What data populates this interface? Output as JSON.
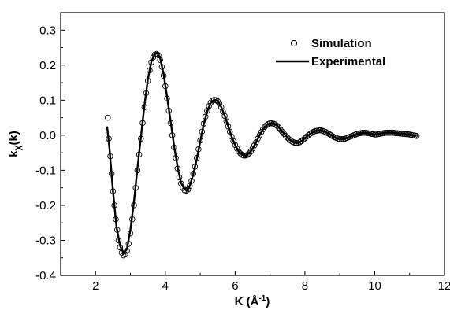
{
  "chart_data": {
    "type": "line",
    "title": "",
    "xlabel": "K (Å",
    "xlabel_sup": "-1",
    "xlabel_end": ")",
    "ylabel": "k",
    "ylabel_sub": "χ",
    "ylabel_end": "(k)",
    "xlim": [
      1,
      12
    ],
    "ylim": [
      -0.4,
      0.35
    ],
    "xticks": [
      2,
      4,
      6,
      8,
      10,
      12
    ],
    "xtick_labels": [
      "2",
      "4",
      "6",
      "8",
      "10",
      "12"
    ],
    "yticks": [
      -0.4,
      -0.3,
      -0.2,
      -0.1,
      0.0,
      0.1,
      0.2,
      0.3
    ],
    "ytick_labels": [
      "-0.4",
      "-0.3",
      "-0.2",
      "-0.1",
      "0.0",
      "0.1",
      "0.2",
      "0.3"
    ],
    "grid": false,
    "legend_position": "top-right",
    "series": [
      {
        "name": "Simulation",
        "style": "open-circle-markers",
        "color": "#000000",
        "points": [
          [
            2.35,
            0.05
          ],
          [
            2.38,
            -0.01
          ],
          [
            2.42,
            -0.06
          ],
          [
            2.46,
            -0.11
          ],
          [
            2.5,
            -0.16
          ],
          [
            2.54,
            -0.2
          ],
          [
            2.58,
            -0.24
          ],
          [
            2.62,
            -0.27
          ],
          [
            2.66,
            -0.3
          ],
          [
            2.7,
            -0.32
          ],
          [
            2.75,
            -0.335
          ],
          [
            2.8,
            -0.343
          ],
          [
            2.85,
            -0.34
          ],
          [
            2.9,
            -0.33
          ],
          [
            2.95,
            -0.31
          ],
          [
            3.0,
            -0.28
          ],
          [
            3.05,
            -0.24
          ],
          [
            3.1,
            -0.2
          ],
          [
            3.15,
            -0.15
          ],
          [
            3.2,
            -0.1
          ],
          [
            3.25,
            -0.055
          ],
          [
            3.3,
            -0.01
          ],
          [
            3.35,
            0.035
          ],
          [
            3.4,
            0.08
          ],
          [
            3.45,
            0.12
          ],
          [
            3.5,
            0.155
          ],
          [
            3.55,
            0.185
          ],
          [
            3.6,
            0.208
          ],
          [
            3.65,
            0.222
          ],
          [
            3.7,
            0.23
          ],
          [
            3.75,
            0.232
          ],
          [
            3.8,
            0.228
          ],
          [
            3.85,
            0.215
          ],
          [
            3.9,
            0.195
          ],
          [
            3.95,
            0.17
          ],
          [
            4.0,
            0.14
          ],
          [
            4.05,
            0.105
          ],
          [
            4.1,
            0.07
          ],
          [
            4.15,
            0.035
          ],
          [
            4.2,
            0.0
          ],
          [
            4.25,
            -0.035
          ],
          [
            4.3,
            -0.065
          ],
          [
            4.35,
            -0.095
          ],
          [
            4.4,
            -0.12
          ],
          [
            4.45,
            -0.138
          ],
          [
            4.5,
            -0.15
          ],
          [
            4.55,
            -0.157
          ],
          [
            4.6,
            -0.158
          ],
          [
            4.65,
            -0.155
          ],
          [
            4.7,
            -0.145
          ],
          [
            4.75,
            -0.13
          ],
          [
            4.8,
            -0.11
          ],
          [
            4.85,
            -0.09
          ],
          [
            4.9,
            -0.065
          ],
          [
            4.95,
            -0.04
          ],
          [
            5.0,
            -0.015
          ],
          [
            5.05,
            0.01
          ],
          [
            5.1,
            0.033
          ],
          [
            5.15,
            0.053
          ],
          [
            5.2,
            0.07
          ],
          [
            5.25,
            0.083
          ],
          [
            5.3,
            0.093
          ],
          [
            5.35,
            0.099
          ],
          [
            5.4,
            0.101
          ],
          [
            5.45,
            0.1
          ],
          [
            5.5,
            0.097
          ],
          [
            5.55,
            0.09
          ],
          [
            5.6,
            0.08
          ],
          [
            5.65,
            0.068
          ],
          [
            5.7,
            0.055
          ],
          [
            5.75,
            0.04
          ],
          [
            5.8,
            0.025
          ],
          [
            5.85,
            0.01
          ],
          [
            5.9,
            -0.004
          ],
          [
            5.95,
            -0.017
          ],
          [
            6.0,
            -0.028
          ],
          [
            6.05,
            -0.038
          ],
          [
            6.1,
            -0.046
          ],
          [
            6.15,
            -0.052
          ],
          [
            6.2,
            -0.056
          ],
          [
            6.25,
            -0.058
          ],
          [
            6.3,
            -0.058
          ],
          [
            6.35,
            -0.056
          ],
          [
            6.4,
            -0.052
          ],
          [
            6.45,
            -0.046
          ],
          [
            6.5,
            -0.038
          ],
          [
            6.55,
            -0.029
          ],
          [
            6.6,
            -0.02
          ],
          [
            6.65,
            -0.01
          ],
          [
            6.7,
            0.0
          ],
          [
            6.75,
            0.009
          ],
          [
            6.8,
            0.017
          ],
          [
            6.85,
            0.024
          ],
          [
            6.9,
            0.029
          ],
          [
            6.95,
            0.032
          ],
          [
            7.0,
            0.034
          ],
          [
            7.05,
            0.034
          ],
          [
            7.1,
            0.033
          ],
          [
            7.15,
            0.031
          ],
          [
            7.2,
            0.027
          ],
          [
            7.25,
            0.022
          ],
          [
            7.3,
            0.016
          ],
          [
            7.35,
            0.01
          ],
          [
            7.4,
            0.004
          ],
          [
            7.45,
            -0.002
          ],
          [
            7.5,
            -0.007
          ],
          [
            7.55,
            -0.012
          ],
          [
            7.6,
            -0.016
          ],
          [
            7.65,
            -0.019
          ],
          [
            7.7,
            -0.021
          ],
          [
            7.75,
            -0.022
          ],
          [
            7.8,
            -0.022
          ],
          [
            7.85,
            -0.02
          ],
          [
            7.9,
            -0.017
          ],
          [
            7.95,
            -0.013
          ],
          [
            8.0,
            -0.009
          ],
          [
            8.05,
            -0.004
          ],
          [
            8.1,
            0.0
          ],
          [
            8.15,
            0.004
          ],
          [
            8.2,
            0.007
          ],
          [
            8.25,
            0.01
          ],
          [
            8.3,
            0.012
          ],
          [
            8.35,
            0.013
          ],
          [
            8.4,
            0.014
          ],
          [
            8.45,
            0.014
          ],
          [
            8.5,
            0.013
          ],
          [
            8.55,
            0.011
          ],
          [
            8.6,
            0.009
          ],
          [
            8.65,
            0.006
          ],
          [
            8.7,
            0.003
          ],
          [
            8.75,
            0.0
          ],
          [
            8.8,
            -0.003
          ],
          [
            8.85,
            -0.006
          ],
          [
            8.9,
            -0.008
          ],
          [
            8.95,
            -0.01
          ],
          [
            9.0,
            -0.011
          ],
          [
            9.05,
            -0.011
          ],
          [
            9.1,
            -0.011
          ],
          [
            9.15,
            -0.01
          ],
          [
            9.2,
            -0.008
          ],
          [
            9.25,
            -0.006
          ],
          [
            9.3,
            -0.004
          ],
          [
            9.35,
            -0.002
          ],
          [
            9.4,
            0.0
          ],
          [
            9.45,
            0.002
          ],
          [
            9.5,
            0.004
          ],
          [
            9.55,
            0.005
          ],
          [
            9.6,
            0.006
          ],
          [
            9.65,
            0.007
          ],
          [
            9.7,
            0.007
          ],
          [
            9.75,
            0.007
          ],
          [
            9.8,
            0.006
          ],
          [
            9.85,
            0.005
          ],
          [
            9.9,
            0.004
          ],
          [
            9.95,
            0.003
          ],
          [
            10.0,
            0.002
          ],
          [
            10.05,
            0.002
          ],
          [
            10.1,
            0.003
          ],
          [
            10.15,
            0.004
          ],
          [
            10.2,
            0.005
          ],
          [
            10.25,
            0.006
          ],
          [
            10.3,
            0.007
          ],
          [
            10.35,
            0.007
          ],
          [
            10.4,
            0.007
          ],
          [
            10.45,
            0.007
          ],
          [
            10.5,
            0.007
          ],
          [
            10.55,
            0.007
          ],
          [
            10.6,
            0.006
          ],
          [
            10.65,
            0.006
          ],
          [
            10.7,
            0.005
          ],
          [
            10.75,
            0.005
          ],
          [
            10.8,
            0.004
          ],
          [
            10.85,
            0.004
          ],
          [
            10.9,
            0.003
          ],
          [
            10.95,
            0.003
          ],
          [
            11.0,
            0.002
          ],
          [
            11.05,
            0.001
          ],
          [
            11.1,
            0.0
          ],
          [
            11.15,
            -0.001
          ],
          [
            11.2,
            -0.002
          ]
        ]
      },
      {
        "name": "Experimental",
        "style": "solid-line",
        "color": "#000000",
        "points": [
          [
            2.33,
            0.025
          ],
          [
            2.4,
            -0.04
          ],
          [
            2.5,
            -0.16
          ],
          [
            2.6,
            -0.26
          ],
          [
            2.7,
            -0.315
          ],
          [
            2.8,
            -0.337
          ],
          [
            2.9,
            -0.325
          ],
          [
            3.0,
            -0.27
          ],
          [
            3.1,
            -0.19
          ],
          [
            3.2,
            -0.095
          ],
          [
            3.3,
            -0.005
          ],
          [
            3.4,
            0.085
          ],
          [
            3.5,
            0.16
          ],
          [
            3.6,
            0.21
          ],
          [
            3.7,
            0.232
          ],
          [
            3.78,
            0.236
          ],
          [
            3.85,
            0.22
          ],
          [
            3.95,
            0.175
          ],
          [
            4.05,
            0.11
          ],
          [
            4.15,
            0.04
          ],
          [
            4.25,
            -0.03
          ],
          [
            4.35,
            -0.09
          ],
          [
            4.45,
            -0.135
          ],
          [
            4.55,
            -0.155
          ],
          [
            4.62,
            -0.157
          ],
          [
            4.7,
            -0.145
          ],
          [
            4.8,
            -0.112
          ],
          [
            4.9,
            -0.068
          ],
          [
            5.0,
            -0.018
          ],
          [
            5.1,
            0.03
          ],
          [
            5.2,
            0.068
          ],
          [
            5.3,
            0.092
          ],
          [
            5.4,
            0.101
          ],
          [
            5.5,
            0.098
          ],
          [
            5.6,
            0.081
          ],
          [
            5.7,
            0.056
          ],
          [
            5.8,
            0.026
          ],
          [
            5.9,
            -0.004
          ],
          [
            6.0,
            -0.028
          ],
          [
            6.1,
            -0.046
          ],
          [
            6.2,
            -0.056
          ],
          [
            6.3,
            -0.058
          ],
          [
            6.4,
            -0.052
          ],
          [
            6.5,
            -0.038
          ],
          [
            6.6,
            -0.02
          ],
          [
            6.7,
            0.0
          ],
          [
            6.8,
            0.017
          ],
          [
            6.9,
            0.029
          ],
          [
            7.0,
            0.034
          ],
          [
            7.1,
            0.034
          ],
          [
            7.2,
            0.028
          ],
          [
            7.3,
            0.017
          ],
          [
            7.4,
            0.005
          ],
          [
            7.5,
            -0.007
          ],
          [
            7.6,
            -0.016
          ],
          [
            7.7,
            -0.021
          ],
          [
            7.8,
            -0.022
          ],
          [
            7.9,
            -0.017
          ],
          [
            8.0,
            -0.009
          ],
          [
            8.1,
            0.0
          ],
          [
            8.2,
            0.007
          ],
          [
            8.3,
            0.012
          ],
          [
            8.4,
            0.014
          ],
          [
            8.5,
            0.013
          ],
          [
            8.6,
            0.009
          ],
          [
            8.7,
            0.003
          ],
          [
            8.8,
            -0.003
          ],
          [
            8.9,
            -0.008
          ],
          [
            9.0,
            -0.011
          ],
          [
            9.1,
            -0.011
          ],
          [
            9.2,
            -0.008
          ],
          [
            9.3,
            -0.004
          ],
          [
            9.4,
            0.0
          ],
          [
            9.5,
            0.004
          ],
          [
            9.6,
            0.006
          ],
          [
            9.7,
            0.007
          ],
          [
            9.8,
            0.006
          ],
          [
            9.9,
            0.004
          ],
          [
            10.0,
            0.002
          ],
          [
            10.1,
            0.003
          ],
          [
            10.2,
            0.005
          ],
          [
            10.3,
            0.007
          ],
          [
            10.4,
            0.007
          ],
          [
            10.5,
            0.007
          ],
          [
            10.6,
            0.006
          ],
          [
            10.7,
            0.005
          ],
          [
            10.8,
            0.004
          ],
          [
            10.9,
            0.003
          ],
          [
            11.0,
            0.002
          ],
          [
            11.1,
            0.0
          ],
          [
            11.2,
            -0.002
          ]
        ]
      }
    ]
  }
}
